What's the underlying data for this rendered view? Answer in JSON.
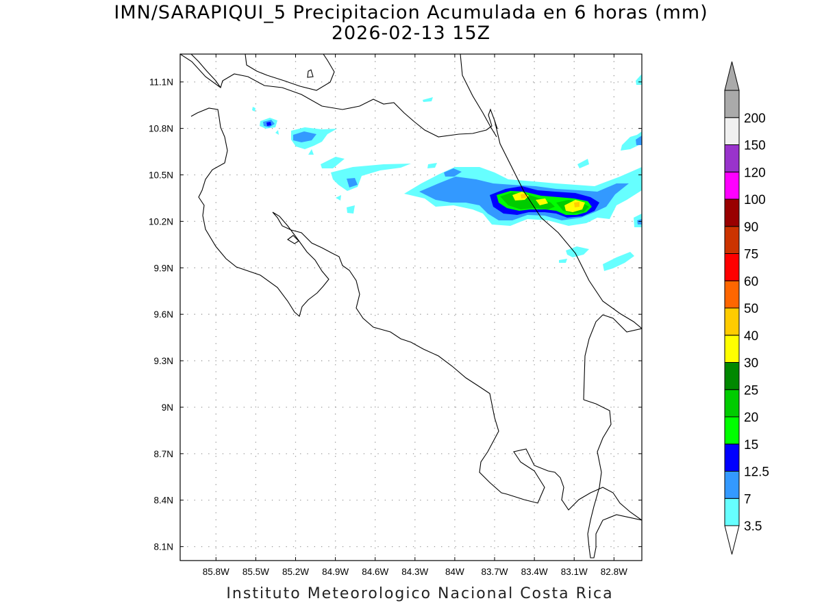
{
  "title": {
    "line1": "IMN/SARAPIQUI_5 Precipitacion Acumulada en 6 horas (mm)",
    "line2": "2026-02-13 15Z"
  },
  "footer": "Instituto Meteorologico Nacional Costa Rica",
  "map": {
    "lon_range": [
      -86.07,
      -82.59
    ],
    "lat_range": [
      8.01,
      11.28
    ],
    "x_ticks": [
      {
        "value": -85.8,
        "label": "85.8W"
      },
      {
        "value": -85.5,
        "label": "85.5W"
      },
      {
        "value": -85.2,
        "label": "85.2W"
      },
      {
        "value": -84.9,
        "label": "84.9W"
      },
      {
        "value": -84.6,
        "label": "84.6W"
      },
      {
        "value": -84.3,
        "label": "84.3W"
      },
      {
        "value": -84.0,
        "label": "84W"
      },
      {
        "value": -83.7,
        "label": "83.7W"
      },
      {
        "value": -83.4,
        "label": "83.4W"
      },
      {
        "value": -83.1,
        "label": "83.1W"
      },
      {
        "value": -82.8,
        "label": "82.8W"
      }
    ],
    "y_ticks": [
      {
        "value": 11.1,
        "label": "11.1N"
      },
      {
        "value": 10.8,
        "label": "10.8N"
      },
      {
        "value": 10.5,
        "label": "10.5N"
      },
      {
        "value": 10.2,
        "label": "10.2N"
      },
      {
        "value": 9.9,
        "label": "9.9N"
      },
      {
        "value": 9.6,
        "label": "9.6N"
      },
      {
        "value": 9.3,
        "label": "9.3N"
      },
      {
        "value": 9.0,
        "label": "9N"
      },
      {
        "value": 8.7,
        "label": "8.7N"
      },
      {
        "value": 8.4,
        "label": "8.4N"
      },
      {
        "value": 8.1,
        "label": "8.1N"
      }
    ],
    "grid": "dotted"
  },
  "colorbar": {
    "levels": [
      "3.5",
      "7",
      "12.5",
      "15",
      "20",
      "25",
      "30",
      "40",
      "50",
      "60",
      "75",
      "90",
      "100",
      "120",
      "150",
      "200"
    ],
    "colors": [
      "#66ffff",
      "#3399ff",
      "#0000ff",
      "#00ff00",
      "#00cc00",
      "#008800",
      "#ffff00",
      "#ffcc00",
      "#ff6600",
      "#ff0000",
      "#cc3300",
      "#990000",
      "#ff00ff",
      "#9933cc",
      "#f0f0f0",
      "#aaaaaa"
    ],
    "under_color": "#ffffff",
    "over_color": "#aaaaaa"
  }
}
